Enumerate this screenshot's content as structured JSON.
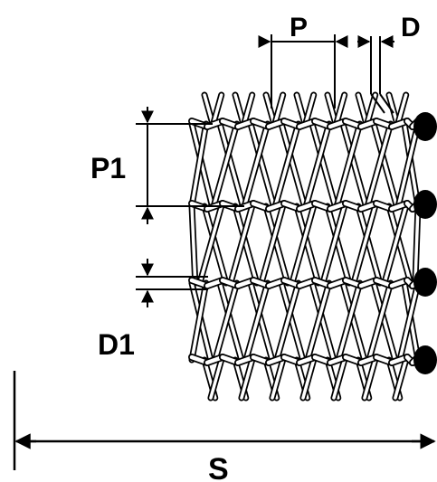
{
  "labels": {
    "pitch": "P",
    "wire_diameter": "D",
    "weft_pitch": "P1",
    "weft_diameter": "D1",
    "width": "S"
  },
  "colors": {
    "ink": "#000000",
    "wire_fill": "#ffffff",
    "background": "#ffffff"
  }
}
